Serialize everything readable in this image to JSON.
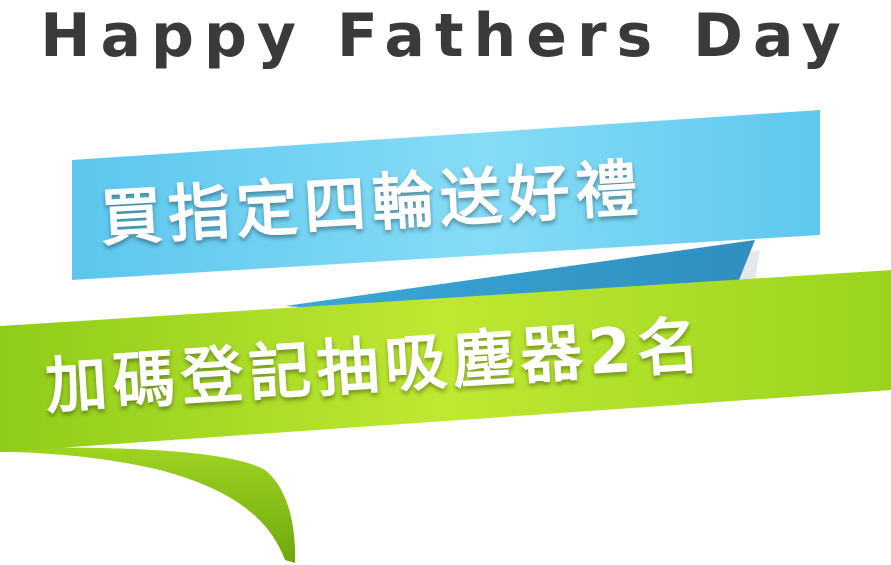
{
  "heading": "Happy Fathers Day",
  "ribbon_top": {
    "text": "買指定四輪送好禮",
    "color": "#6ccdf0"
  },
  "ribbon_bottom": {
    "text": "加碼登記抽吸塵器2名",
    "color": "#a8dc22"
  }
}
